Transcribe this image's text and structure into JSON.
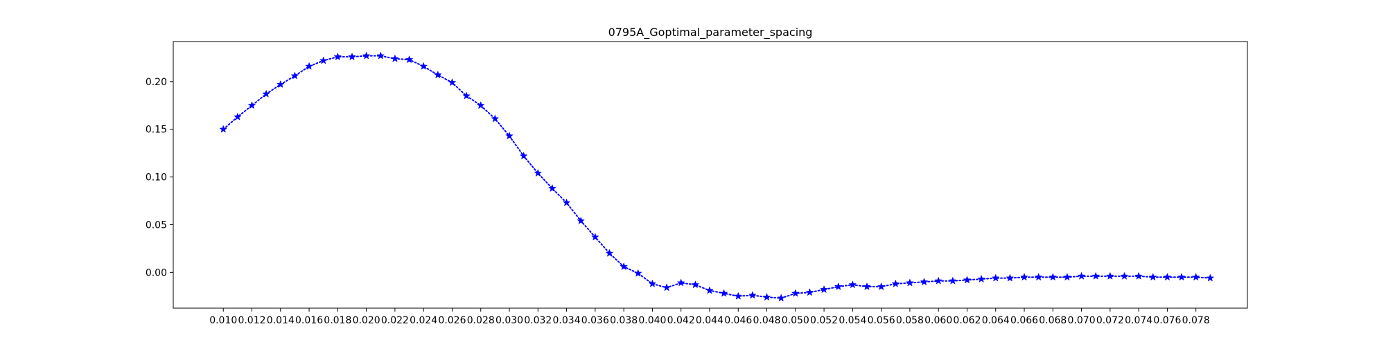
{
  "chart_data": {
    "type": "line",
    "title": "0795A_Goptimal_parameter_spacing",
    "xlabel": "",
    "ylabel": "",
    "xlim": [
      0.0065,
      0.0816
    ],
    "ylim": [
      -0.0375,
      0.242
    ],
    "x_ticks": [
      0.01,
      0.012,
      0.014,
      0.016,
      0.018,
      0.02,
      0.022,
      0.024,
      0.026,
      0.028,
      0.03,
      0.032,
      0.034,
      0.036,
      0.038,
      0.04,
      0.042,
      0.044,
      0.046,
      0.048,
      0.05,
      0.052,
      0.054,
      0.056,
      0.058,
      0.06,
      0.062,
      0.064,
      0.066,
      0.068,
      0.07,
      0.072,
      0.074,
      0.076,
      0.078
    ],
    "x_tick_labels": [
      "0.010",
      "0.012",
      "0.014",
      "0.016",
      "0.018",
      "0.020",
      "0.022",
      "0.024",
      "0.026",
      "0.028",
      "0.030",
      "0.032",
      "0.034",
      "0.036",
      "0.038",
      "0.040",
      "0.042",
      "0.044",
      "0.046",
      "0.048",
      "0.050",
      "0.052",
      "0.054",
      "0.056",
      "0.058",
      "0.060",
      "0.062",
      "0.064",
      "0.066",
      "0.068",
      "0.070",
      "0.072",
      "0.074",
      "0.076",
      "0.078"
    ],
    "y_ticks": [
      0.0,
      0.05,
      0.1,
      0.15,
      0.2
    ],
    "y_tick_labels": [
      "0.00",
      "0.05",
      "0.10",
      "0.15",
      "0.20"
    ],
    "grid": false,
    "legend": "none",
    "series": [
      {
        "color": "#0000ff",
        "line_style": "dotted",
        "marker": "star",
        "x": [
          0.01,
          0.011,
          0.012,
          0.013,
          0.014,
          0.015,
          0.016,
          0.017,
          0.018,
          0.019,
          0.02,
          0.021,
          0.022,
          0.023,
          0.024,
          0.025,
          0.026,
          0.027,
          0.028,
          0.029,
          0.03,
          0.031,
          0.032,
          0.033,
          0.034,
          0.035,
          0.036,
          0.037,
          0.038,
          0.039,
          0.04,
          0.041,
          0.042,
          0.043,
          0.044,
          0.045,
          0.046,
          0.047,
          0.048,
          0.049,
          0.05,
          0.051,
          0.052,
          0.053,
          0.054,
          0.055,
          0.056,
          0.057,
          0.058,
          0.059,
          0.06,
          0.061,
          0.062,
          0.063,
          0.064,
          0.065,
          0.066,
          0.067,
          0.068,
          0.069,
          0.07,
          0.071,
          0.072,
          0.073,
          0.074,
          0.075,
          0.076,
          0.077,
          0.078,
          0.079
        ],
        "y": [
          0.15,
          0.163,
          0.175,
          0.187,
          0.197,
          0.206,
          0.216,
          0.222,
          0.226,
          0.226,
          0.227,
          0.227,
          0.224,
          0.223,
          0.216,
          0.207,
          0.199,
          0.185,
          0.175,
          0.161,
          0.143,
          0.122,
          0.104,
          0.088,
          0.073,
          0.054,
          0.037,
          0.02,
          0.006,
          -0.001,
          -0.012,
          -0.016,
          -0.011,
          -0.013,
          -0.019,
          -0.022,
          -0.025,
          -0.024,
          -0.026,
          -0.027,
          -0.022,
          -0.021,
          -0.018,
          -0.015,
          -0.013,
          -0.015,
          -0.015,
          -0.012,
          -0.011,
          -0.01,
          -0.009,
          -0.009,
          -0.008,
          -0.007,
          -0.006,
          -0.006,
          -0.005,
          -0.005,
          -0.005,
          -0.005,
          -0.004,
          -0.004,
          -0.004,
          -0.004,
          -0.004,
          -0.005,
          -0.005,
          -0.005,
          -0.005,
          -0.006
        ]
      }
    ]
  }
}
